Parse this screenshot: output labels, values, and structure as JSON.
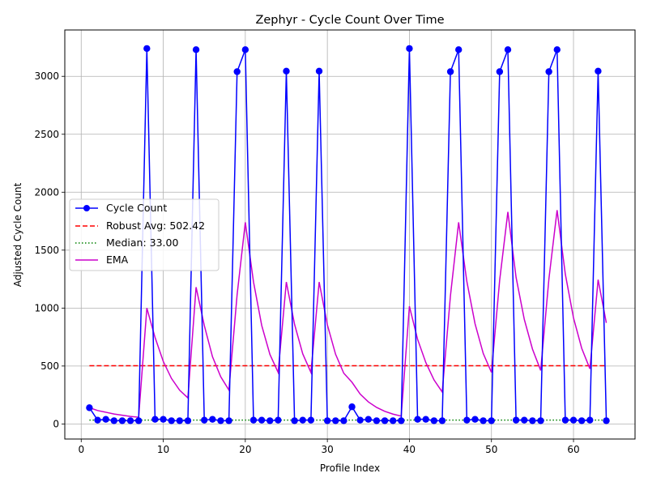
{
  "chart_data": {
    "type": "line",
    "title": "Zephyr - Cycle Count Over Time",
    "xlabel": "Profile Index",
    "ylabel": "Adjusted Cycle Count",
    "xlim": [
      -2,
      67.5
    ],
    "ylim": [
      -130,
      3400
    ],
    "xticks": [
      0,
      10,
      20,
      30,
      40,
      50,
      60
    ],
    "yticks": [
      0,
      500,
      1000,
      1500,
      2000,
      2500,
      3000
    ],
    "grid": true,
    "legend_position": "center-left",
    "x": [
      1,
      2,
      3,
      4,
      5,
      6,
      7,
      8,
      9,
      10,
      11,
      12,
      13,
      14,
      15,
      16,
      17,
      18,
      19,
      20,
      21,
      22,
      23,
      24,
      25,
      26,
      27,
      28,
      29,
      30,
      31,
      32,
      33,
      34,
      35,
      36,
      37,
      38,
      39,
      40,
      41,
      42,
      43,
      44,
      45,
      46,
      47,
      48,
      49,
      50,
      51,
      52,
      53,
      54,
      55,
      56,
      57,
      58,
      59,
      60,
      61,
      62,
      63,
      64
    ],
    "series": [
      {
        "name": "Cycle Count",
        "style": "solid-marker",
        "color": "#0000ff",
        "values": [
          140,
          33,
          40,
          28,
          28,
          28,
          28,
          3240,
          40,
          40,
          28,
          28,
          28,
          3230,
          33,
          40,
          28,
          28,
          3040,
          3230,
          33,
          33,
          28,
          33,
          3045,
          28,
          33,
          33,
          3045,
          28,
          28,
          28,
          148,
          33,
          40,
          28,
          28,
          28,
          28,
          3240,
          40,
          40,
          28,
          28,
          3040,
          3230,
          33,
          40,
          28,
          28,
          3040,
          3230,
          33,
          33,
          28,
          28,
          3040,
          3230,
          33,
          33,
          28,
          33,
          3045,
          28
        ]
      },
      {
        "name": "Robust Avg: 502.42",
        "style": "dashed",
        "color": "#ff0000",
        "constant": 502.42
      },
      {
        "name": "Median: 33.00",
        "style": "dotted",
        "color": "#008000",
        "constant": 33.0
      },
      {
        "name": "EMA",
        "style": "solid",
        "color": "#cc00cc",
        "values": [
          140,
          116,
          101,
          86,
          75,
          65,
          58,
          1000,
          746,
          540,
          393,
          291,
          225,
          1180,
          850,
          580,
          408,
          293,
          1115,
          1740,
          1225,
          850,
          600,
          445,
          1225,
          860,
          605,
          445,
          1225,
          856,
          602,
          438,
          360,
          258,
          190,
          143,
          109,
          85,
          68,
          1015,
          730,
          530,
          380,
          276,
          1105,
          1740,
          1230,
          865,
          608,
          445,
          1240,
          1830,
          1265,
          903,
          646,
          462,
          1250,
          1845,
          1294,
          915,
          653,
          476,
          1245,
          872
        ]
      }
    ]
  }
}
